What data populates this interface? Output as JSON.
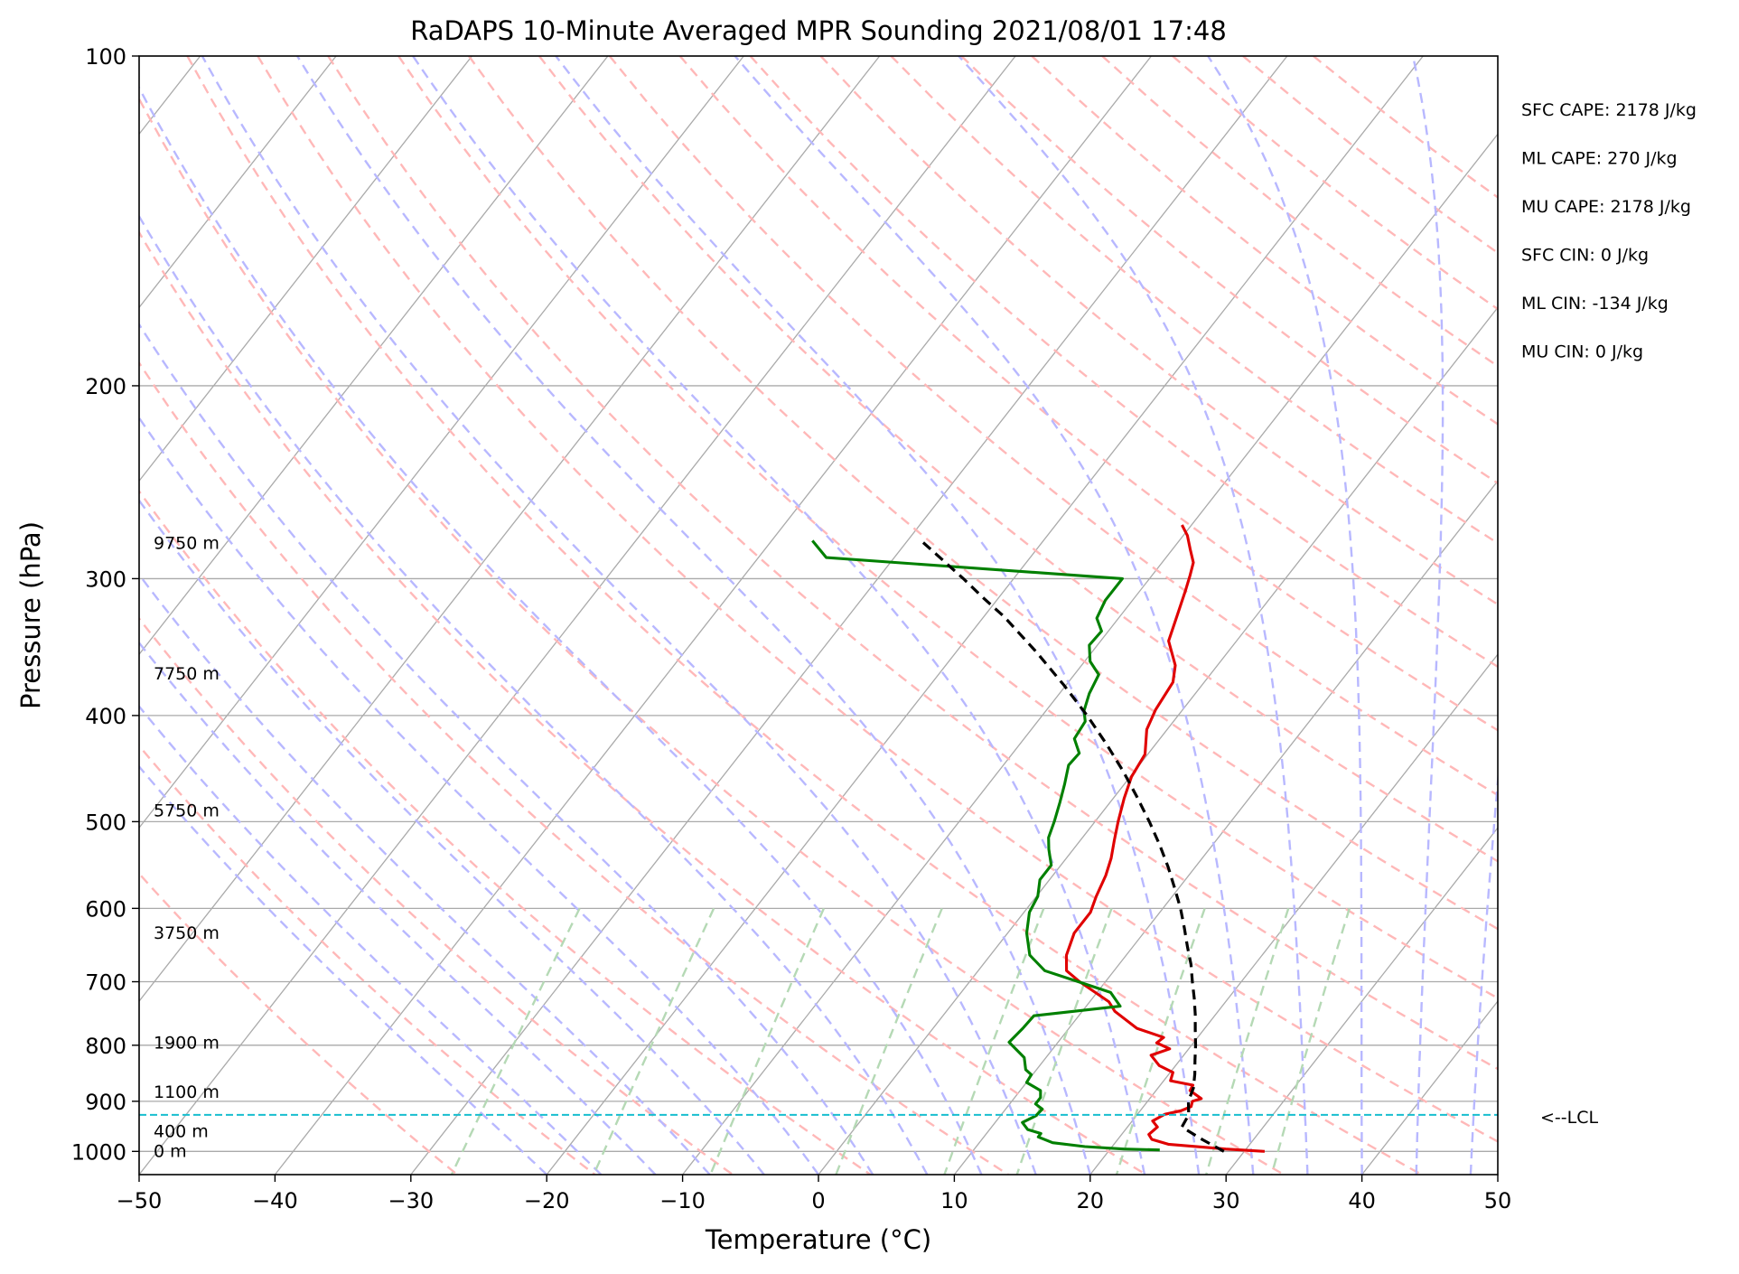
{
  "chart_data": {
    "type": "skew-t",
    "title": "RaDAPS 10-Minute Averaged MPR Sounding 2021/08/01 17:48",
    "xlabel": "Temperature (°C)",
    "ylabel": "Pressure (hPa)",
    "xlim": [
      -50,
      50
    ],
    "ylim": [
      1050,
      100
    ],
    "y_scale": "log",
    "x_ticks": [
      -50,
      -40,
      -30,
      -20,
      -10,
      0,
      10,
      20,
      30,
      40,
      50
    ],
    "x_tick_labels": [
      "−50",
      "−40",
      "−30",
      "−20",
      "−10",
      "0",
      "10",
      "20",
      "30",
      "40",
      "50"
    ],
    "y_ticks": [
      100,
      200,
      300,
      400,
      500,
      600,
      700,
      800,
      900,
      1000
    ],
    "y_tick_labels": [
      "100",
      "200",
      "300",
      "400",
      "500",
      "600",
      "700",
      "800",
      "900",
      "1000"
    ],
    "grid": true,
    "series": [
      {
        "role": "temperature",
        "color": "#e00000",
        "points": [
          [
            31.5,
            1000
          ],
          [
            28.5,
            995
          ],
          [
            24,
            985
          ],
          [
            22.5,
            975
          ],
          [
            22,
            965
          ],
          [
            22.2,
            950
          ],
          [
            21.5,
            938
          ],
          [
            22,
            925
          ],
          [
            23,
            918
          ],
          [
            23.5,
            910
          ],
          [
            23.3,
            900
          ],
          [
            23.8,
            895
          ],
          [
            22.5,
            880
          ],
          [
            22.4,
            870
          ],
          [
            20.5,
            862
          ],
          [
            20.2,
            847
          ],
          [
            18.8,
            835
          ],
          [
            17.6,
            817
          ],
          [
            18.6,
            806
          ],
          [
            17.3,
            796
          ],
          [
            17.5,
            787
          ],
          [
            15,
            772
          ],
          [
            12.4,
            745
          ],
          [
            11.4,
            730
          ],
          [
            8.1,
            700
          ],
          [
            6.5,
            684
          ],
          [
            5.6,
            662
          ],
          [
            4.9,
            632
          ],
          [
            4.9,
            605
          ],
          [
            4.4,
            585
          ],
          [
            3.9,
            560
          ],
          [
            3.3,
            540
          ],
          [
            2.5,
            520
          ],
          [
            1.7,
            500
          ],
          [
            0.8,
            476
          ],
          [
            0.1,
            455
          ],
          [
            -0.2,
            434
          ],
          [
            -1.5,
            412
          ],
          [
            -2,
            395
          ],
          [
            -2.3,
            373
          ],
          [
            -3.1,
            360
          ],
          [
            -5,
            342
          ],
          [
            -5.8,
            325
          ],
          [
            -6.7,
            307
          ],
          [
            -7.2,
            298
          ],
          [
            -7.7,
            290
          ],
          [
            -8.7,
            282
          ],
          [
            -9.7,
            274
          ],
          [
            -10.7,
            268
          ]
        ]
      },
      {
        "role": "dewpoint",
        "color": "#008000",
        "points": [
          [
            23.7,
            997
          ],
          [
            21,
            995
          ],
          [
            18,
            990
          ],
          [
            15.4,
            982
          ],
          [
            14,
            970
          ],
          [
            14,
            963
          ],
          [
            12.8,
            955
          ],
          [
            12,
            941
          ],
          [
            12.6,
            928
          ],
          [
            12.7,
            915
          ],
          [
            11.9,
            905
          ],
          [
            11.9,
            893
          ],
          [
            11.5,
            880
          ],
          [
            10,
            865
          ],
          [
            9.9,
            851
          ],
          [
            9.2,
            842
          ],
          [
            8.4,
            821
          ],
          [
            6.4,
            795
          ],
          [
            6.6,
            772
          ],
          [
            6.7,
            752
          ],
          [
            12.5,
            737
          ],
          [
            11,
            716
          ],
          [
            8,
            700
          ],
          [
            4.9,
            684
          ],
          [
            2.9,
            662
          ],
          [
            1.4,
            632
          ],
          [
            0.4,
            605
          ],
          [
            0.1,
            585
          ],
          [
            -0.7,
            565
          ],
          [
            -0.7,
            548
          ],
          [
            -1.8,
            530
          ],
          [
            -2.5,
            517
          ],
          [
            -3,
            500
          ],
          [
            -3.7,
            480
          ],
          [
            -4.4,
            462
          ],
          [
            -5.2,
            444
          ],
          [
            -5.1,
            433
          ],
          [
            -6.3,
            420
          ],
          [
            -6.5,
            405
          ],
          [
            -7.2,
            396
          ],
          [
            -7.8,
            382
          ],
          [
            -8.2,
            367
          ],
          [
            -9.6,
            357
          ],
          [
            -10.6,
            345
          ],
          [
            -10.5,
            335
          ],
          [
            -11.6,
            326
          ],
          [
            -12,
            314
          ],
          [
            -12,
            300
          ],
          [
            -35,
            287
          ],
          [
            -37,
            277
          ]
        ]
      },
      {
        "role": "parcel",
        "color": "#000000",
        "points": [
          [
            28.5,
            1000
          ],
          [
            26.2,
            975
          ],
          [
            24,
            950
          ],
          [
            23.8,
            926
          ],
          [
            23,
            900
          ],
          [
            22.6,
            875
          ],
          [
            21.9,
            850
          ],
          [
            21.1,
            825
          ],
          [
            20.3,
            800
          ],
          [
            19.4,
            775
          ],
          [
            18.5,
            750
          ],
          [
            17.5,
            725
          ],
          [
            16.4,
            700
          ],
          [
            15.3,
            675
          ],
          [
            14,
            650
          ],
          [
            12.7,
            625
          ],
          [
            11.3,
            600
          ],
          [
            9.7,
            575
          ],
          [
            8,
            550
          ],
          [
            6.1,
            525
          ],
          [
            4,
            500
          ],
          [
            1.7,
            475
          ],
          [
            -0.8,
            450
          ],
          [
            -3.6,
            425
          ],
          [
            -6.7,
            400
          ],
          [
            -10.2,
            375
          ],
          [
            -14.1,
            350
          ],
          [
            -18.5,
            325
          ],
          [
            -21.2,
            312
          ],
          [
            -23.7,
            300
          ],
          [
            -27.1,
            285
          ],
          [
            -29,
            277
          ]
        ]
      }
    ],
    "lcl": {
      "pressure": 926,
      "label": "<--LCL",
      "color": "#17becf"
    },
    "height_labels": [
      {
        "text": "9750 m",
        "pressure": 278
      },
      {
        "text": "7750 m",
        "pressure": 366
      },
      {
        "text": "5750 m",
        "pressure": 488
      },
      {
        "text": "3750 m",
        "pressure": 631
      },
      {
        "text": "1900 m",
        "pressure": 795
      },
      {
        "text": "1100 m",
        "pressure": 882
      },
      {
        "text": "400 m",
        "pressure": 958
      },
      {
        "text": "0 m",
        "pressure": 998
      }
    ],
    "annotations": [
      "SFC CAPE: 2178 J/kg",
      "ML CAPE: 270 J/kg",
      "MU CAPE: 2178 J/kg",
      "SFC CIN: 0 J/kg",
      "ML CIN: -134 J/kg",
      "MU CIN: 0 J/kg"
    ],
    "background_lines": {
      "isotherm_step_c": 10,
      "dry_adiabat_theta_k": [
        -30,
        -20,
        -10,
        0,
        10,
        20,
        30,
        40,
        50,
        60,
        70,
        80,
        90,
        100,
        110,
        120,
        130,
        140,
        150,
        160,
        170,
        180,
        190,
        200
      ],
      "moist_adiabat_surface_t_c": [
        -20,
        -16,
        -12,
        -8,
        -4,
        0,
        4,
        8,
        12,
        16,
        20,
        24,
        28,
        32,
        36,
        40,
        44,
        48
      ],
      "mixing_ratio_g_kg": [
        0.4,
        1,
        2,
        4,
        7,
        10,
        16,
        24,
        32
      ],
      "colors": {
        "isotherm": "#aaaaaa",
        "isobar": "#aaaaaa",
        "dry_adiabat": "#ffb8b8",
        "moist_adiabat": "#b8b8ff",
        "mixing_ratio": "#b5d9b5"
      }
    }
  }
}
